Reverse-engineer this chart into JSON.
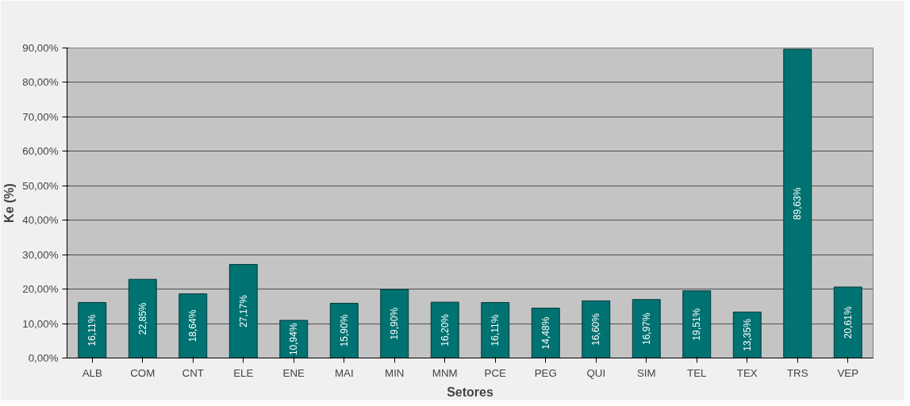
{
  "chart_data": {
    "type": "bar",
    "xlabel": "Setores",
    "ylabel": "Ke (%)",
    "categories": [
      "ALB",
      "COM",
      "CNT",
      "ELE",
      "ENE",
      "MAI",
      "MIN",
      "MNM",
      "PCE",
      "PEG",
      "QUI",
      "SIM",
      "TEL",
      "TEX",
      "TRS",
      "VEP"
    ],
    "values": [
      16.11,
      22.85,
      18.64,
      27.17,
      10.94,
      15.9,
      19.9,
      16.2,
      16.11,
      14.48,
      16.6,
      16.97,
      19.51,
      13.35,
      89.63,
      20.61
    ],
    "value_labels": [
      "16,11%",
      "22,85%",
      "18,64%",
      "27,17%",
      "10,94%",
      "15,90%",
      "19,90%",
      "16,20%",
      "16,11%",
      "14,48%",
      "16,60%",
      "16,97%",
      "19,51%",
      "13,35%",
      "89,63%",
      "20,61%"
    ],
    "color": "#007272",
    "ylim": [
      0,
      90
    ],
    "yticks": [
      {
        "value": 0,
        "label": "0,00%"
      },
      {
        "value": 10,
        "label": "10,00%"
      },
      {
        "value": 20,
        "label": "20,00%"
      },
      {
        "value": 30,
        "label": "30,00%"
      },
      {
        "value": 40,
        "label": "40,00%"
      },
      {
        "value": 50,
        "label": "50,00%"
      },
      {
        "value": 60,
        "label": "60,00%"
      },
      {
        "value": 70,
        "label": "70,00%"
      },
      {
        "value": 80,
        "label": "80,00%"
      },
      {
        "value": 90,
        "label": "90,00%"
      }
    ],
    "grid": "y"
  }
}
